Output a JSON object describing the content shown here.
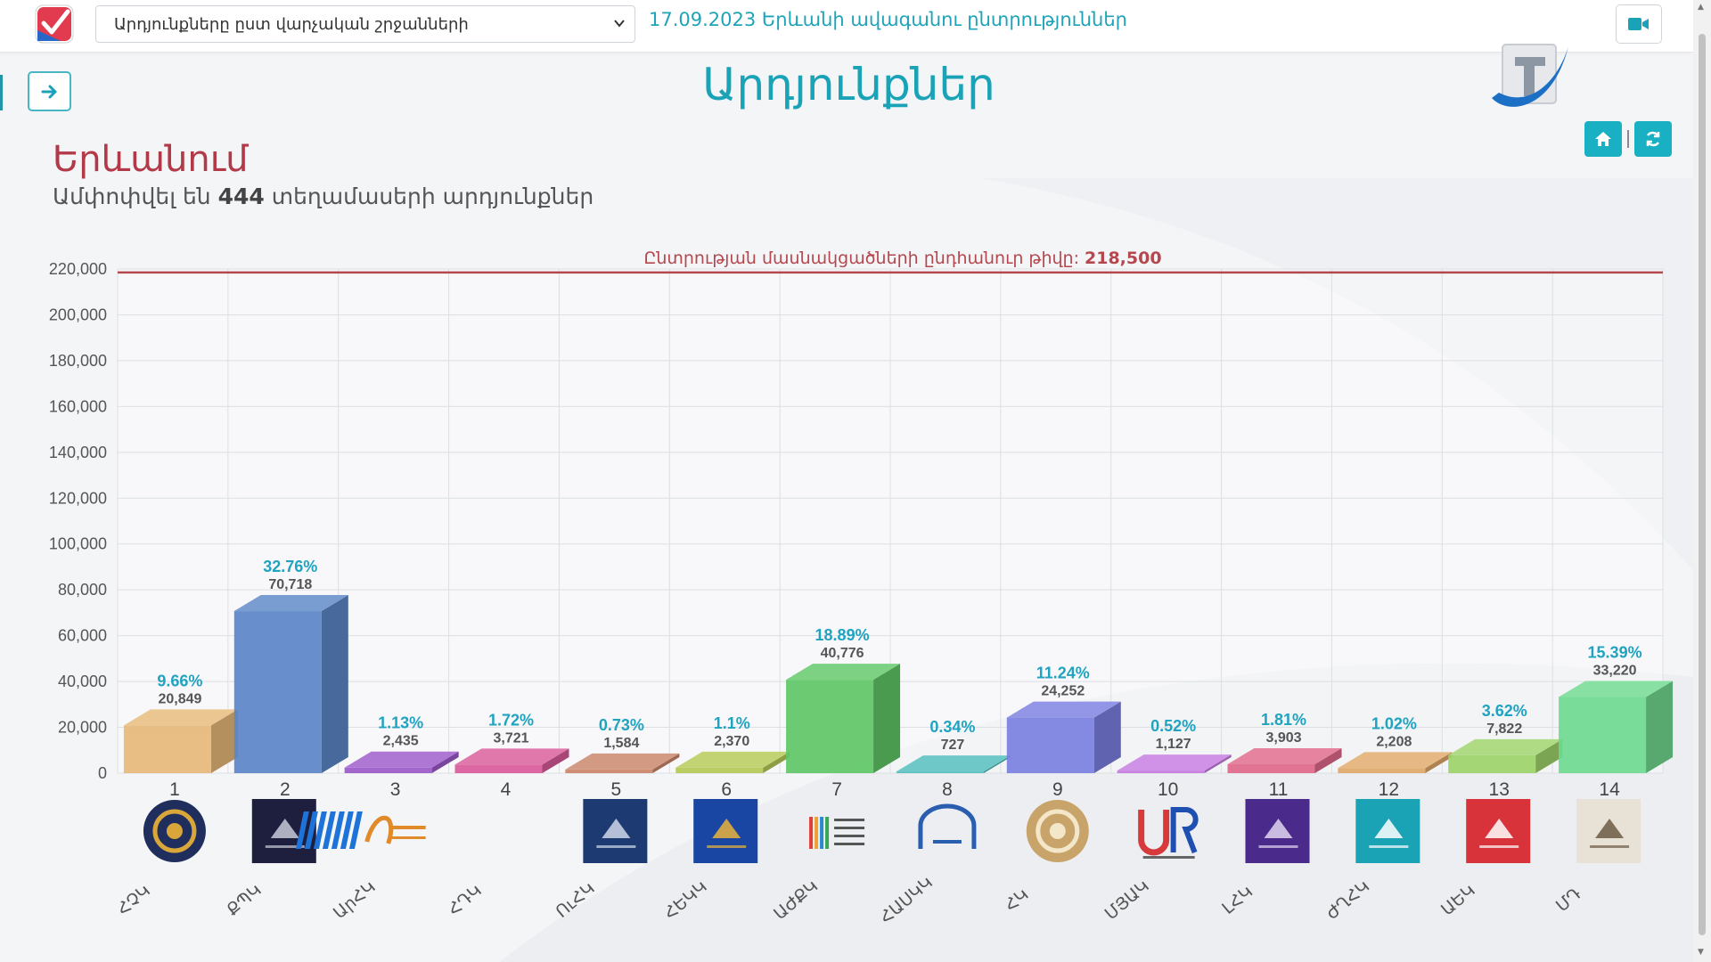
{
  "header": {
    "region_select": "Արդյունքները ըստ վարչական շրջանների",
    "election_title": "17.09.2023 Երևանի ավագանու ընտրություններ"
  },
  "page": {
    "title": "Արդյունքներ",
    "city": "Երևանում",
    "summary_prefix": "Ամփոփվել են",
    "summary_count": "444",
    "summary_suffix": "տեղամասերի արդյունքներ"
  },
  "colors": {
    "accent": "#1aa3b7",
    "city_red": "#b23a48",
    "total_line": "#b5474f"
  },
  "chart_data": {
    "type": "bar",
    "reference_line": {
      "label": "Ընտրության մասնակցածների ընդհանուր թիվը:",
      "value_label": "218,500",
      "value": 218500
    },
    "ylim": [
      0,
      220000
    ],
    "y_ticks": [
      0,
      20000,
      40000,
      60000,
      80000,
      100000,
      120000,
      140000,
      160000,
      180000,
      200000,
      220000
    ],
    "y_tick_labels": [
      "0",
      "20,000",
      "40,000",
      "60,000",
      "80,000",
      "100,000",
      "120,000",
      "140,000",
      "160,000",
      "180,000",
      "200,000",
      "220,000"
    ],
    "grid": true,
    "bars": [
      {
        "number": "1",
        "abbr": "ՀՉԿ",
        "value": 20849,
        "value_label": "20,849",
        "percent": "9.66%",
        "color": "#e6b979",
        "logo": "round-gold-emblem-icon"
      },
      {
        "number": "2",
        "abbr": "ՔՊԿ",
        "value": 70718,
        "value_label": "70,718",
        "percent": "32.76%",
        "color": "#5b86c7",
        "logo": "navy-square-emblem-icon"
      },
      {
        "number": "3",
        "abbr": "ԱրՀԿ",
        "value": 2435,
        "value_label": "2,435",
        "percent": "1.13%",
        "color": "#9b59c9",
        "logo": "orange-script-logo-icon"
      },
      {
        "number": "4",
        "abbr": "ՀԴԿ",
        "value": 3721,
        "value_label": "3,721",
        "percent": "1.72%",
        "color": "#d95a9a",
        "logo": "blue-striped-logo-icon"
      },
      {
        "number": "5",
        "abbr": "ՈւՀԿ",
        "value": 1584,
        "value_label": "1,584",
        "percent": "0.73%",
        "color": "#c98468",
        "logo": "navy-lions-logo-icon"
      },
      {
        "number": "6",
        "abbr": "ՀԵԿԿ",
        "value": 2370,
        "value_label": "2,370",
        "percent": "1.1%",
        "color": "#b4c956",
        "logo": "blue-stars-logo-icon"
      },
      {
        "number": "7",
        "abbr": "ԱԺՔԿ",
        "value": 40776,
        "value_label": "40,776",
        "percent": "18.89%",
        "color": "#5fc766",
        "logo": "colored-bars-logo-icon"
      },
      {
        "number": "8",
        "abbr": "ՀԱՍԿԿ",
        "value": 727,
        "value_label": "727",
        "percent": "0.34%",
        "color": "#4fbcbc",
        "logo": "blue-arch-logo-icon"
      },
      {
        "number": "9",
        "abbr": "ՀԿ",
        "value": 24252,
        "value_label": "24,252",
        "percent": "11.24%",
        "color": "#7b7fe0",
        "logo": "round-ornament-logo-icon"
      },
      {
        "number": "10",
        "abbr": "ՄՅԱԿ",
        "value": 1127,
        "value_label": "1,127",
        "percent": "0.52%",
        "color": "#c67ae0",
        "logo": "red-blue-ur-logo-icon"
      },
      {
        "number": "11",
        "abbr": "ԼՀԿ",
        "value": 3903,
        "value_label": "3,903",
        "percent": "1.81%",
        "color": "#e0688a",
        "logo": "purple-square-logo-icon"
      },
      {
        "number": "12",
        "abbr": "ԺՂՀԿ",
        "value": 2208,
        "value_label": "2,208",
        "percent": "1.02%",
        "color": "#e0a868",
        "logo": "teal-square-logo-icon"
      },
      {
        "number": "13",
        "abbr": "ԱԵԿ",
        "value": 7822,
        "value_label": "7,822",
        "percent": "3.62%",
        "color": "#9ed36a",
        "logo": "red-square-logo-icon"
      },
      {
        "number": "14",
        "abbr": "ՄԴ",
        "value": 33220,
        "value_label": "33,220",
        "percent": "15.39%",
        "color": "#6fd98f",
        "logo": "portrait-logo-icon"
      }
    ]
  }
}
